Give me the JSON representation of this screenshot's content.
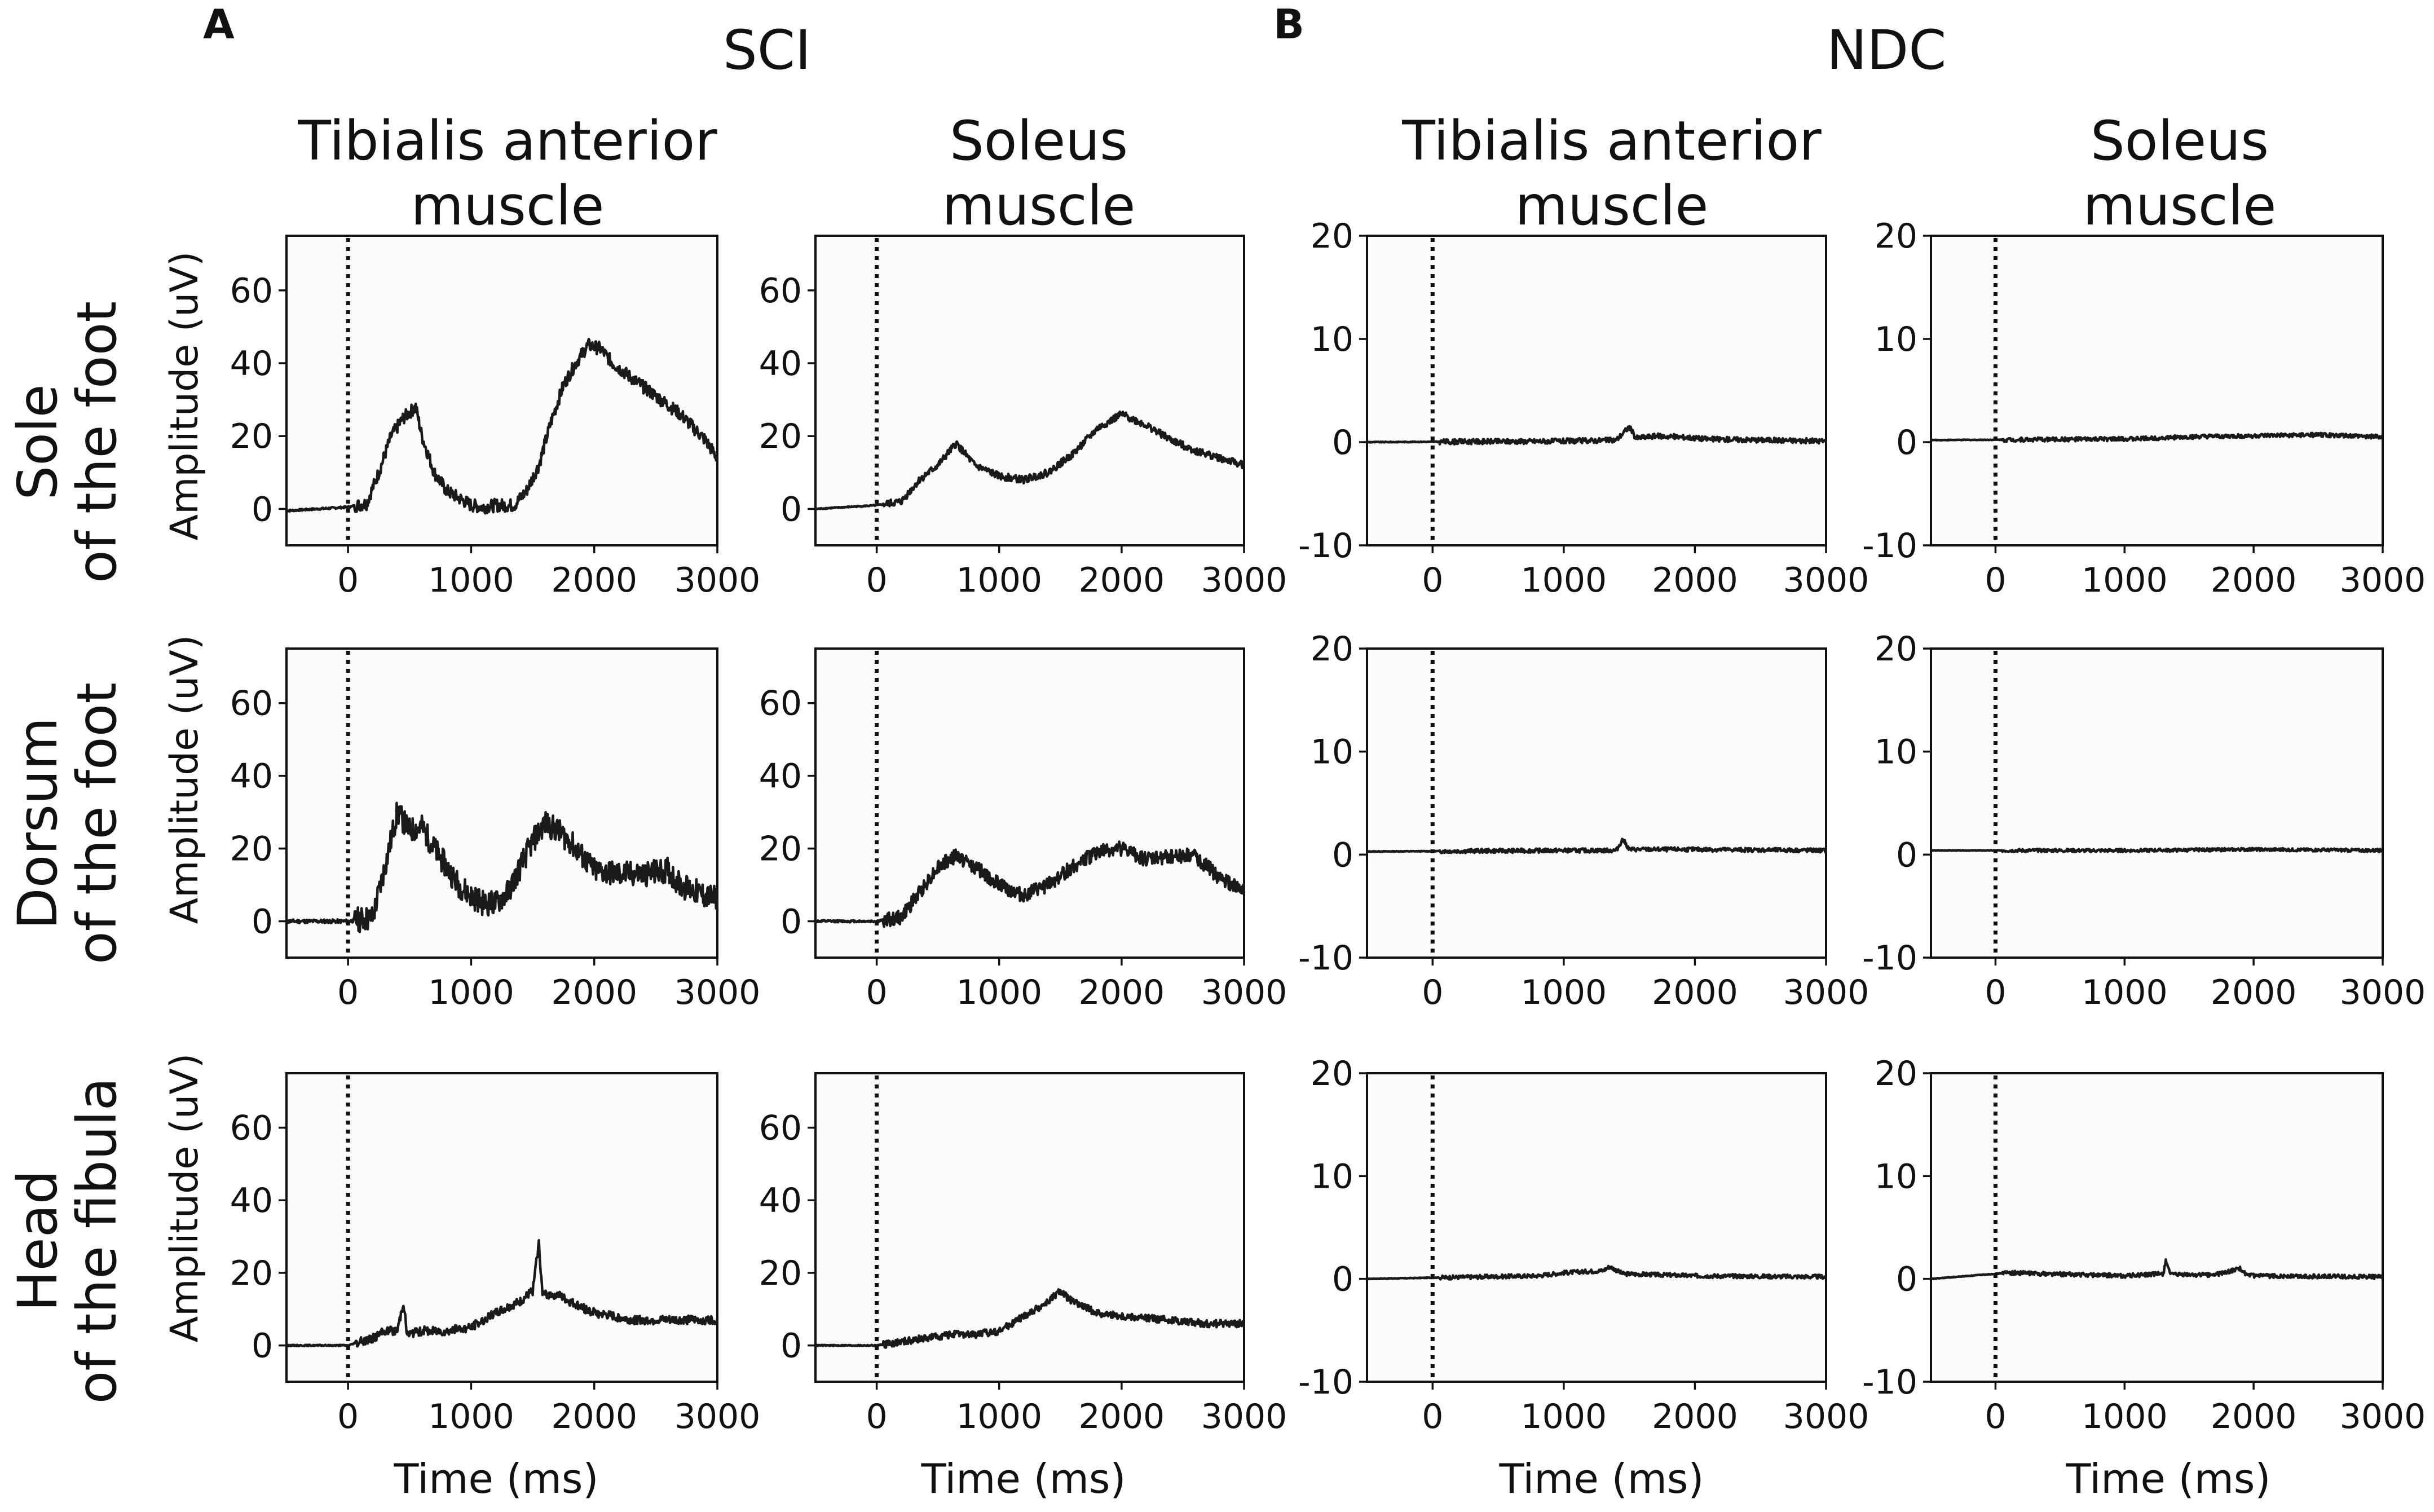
{
  "figure": {
    "panels": [
      {
        "letter": "A",
        "group": "SCI"
      },
      {
        "letter": "B",
        "group": "NDC"
      }
    ],
    "column_titles": [
      {
        "line1": "Tibialis anterior",
        "line2": "muscle"
      },
      {
        "line1": "Soleus",
        "line2": "muscle"
      },
      {
        "line1": "Tibialis anterior",
        "line2": "muscle"
      },
      {
        "line1": "Soleus",
        "line2": "muscle"
      }
    ],
    "row_titles": [
      {
        "line1": "Sole",
        "line2": "of the foot"
      },
      {
        "line1": "Dorsum",
        "line2": "of the foot"
      },
      {
        "line1": "Head",
        "line2": "of the fibula"
      }
    ],
    "ylabel": "Amplitude (uV)",
    "xlabel": "Time (ms)"
  },
  "chart_data": {
    "type": "line",
    "x_unit": "ms",
    "y_unit": "uV",
    "stimulus_onset_ms": 0,
    "charts": [
      {
        "group": "SCI",
        "muscle": "Tibialis anterior muscle",
        "site": "Sole of the foot",
        "xlim": [
          -500,
          3000
        ],
        "xticks": [
          0,
          1000,
          2000,
          3000
        ],
        "ylim": [
          -10,
          75
        ],
        "yticks": [
          0,
          20,
          40,
          60
        ],
        "trace": [
          [
            -500,
            -0.5
          ],
          [
            0,
            0.5
          ],
          [
            150,
            1.5
          ],
          [
            250,
            10
          ],
          [
            350,
            20
          ],
          [
            450,
            25
          ],
          [
            550,
            28
          ],
          [
            600,
            20
          ],
          [
            700,
            10
          ],
          [
            800,
            5
          ],
          [
            900,
            3
          ],
          [
            1000,
            1
          ],
          [
            1100,
            0.5
          ],
          [
            1200,
            1
          ],
          [
            1350,
            1
          ],
          [
            1450,
            5
          ],
          [
            1550,
            12
          ],
          [
            1650,
            24
          ],
          [
            1750,
            34
          ],
          [
            1850,
            40
          ],
          [
            1950,
            45
          ],
          [
            2050,
            44
          ],
          [
            2150,
            40
          ],
          [
            2300,
            36
          ],
          [
            2500,
            31
          ],
          [
            2700,
            26
          ],
          [
            2900,
            19
          ],
          [
            3000,
            14
          ]
        ],
        "noise": 1.8
      },
      {
        "group": "SCI",
        "muscle": "Soleus muscle",
        "site": "Sole of the foot",
        "xlim": [
          -500,
          3000
        ],
        "xticks": [
          0,
          1000,
          2000,
          3000
        ],
        "ylim": [
          -10,
          75
        ],
        "yticks": [
          0,
          20,
          40,
          60
        ],
        "trace": [
          [
            -500,
            0
          ],
          [
            0,
            1
          ],
          [
            200,
            2
          ],
          [
            350,
            8
          ],
          [
            500,
            12
          ],
          [
            650,
            18
          ],
          [
            800,
            12
          ],
          [
            1000,
            9
          ],
          [
            1200,
            8
          ],
          [
            1400,
            10
          ],
          [
            1600,
            15
          ],
          [
            1800,
            22
          ],
          [
            2000,
            26
          ],
          [
            2200,
            23
          ],
          [
            2400,
            19
          ],
          [
            2600,
            16
          ],
          [
            2800,
            14
          ],
          [
            3000,
            12
          ]
        ],
        "noise": 1.0
      },
      {
        "group": "NDC",
        "muscle": "Tibialis anterior muscle",
        "site": "Sole of the foot",
        "xlim": [
          -500,
          3000
        ],
        "xticks": [
          0,
          1000,
          2000,
          3000
        ],
        "ylim": [
          -10,
          20
        ],
        "yticks": [
          -10,
          0,
          10,
          20
        ],
        "trace": [
          [
            -500,
            0
          ],
          [
            1000,
            0.1
          ],
          [
            1400,
            0.2
          ],
          [
            1500,
            1.5
          ],
          [
            1550,
            0.4
          ],
          [
            1700,
            0.6
          ],
          [
            1900,
            0.5
          ],
          [
            2100,
            0.3
          ],
          [
            3000,
            0.1
          ]
        ],
        "noise": 0.25
      },
      {
        "group": "NDC",
        "muscle": "Soleus muscle",
        "site": "Sole of the foot",
        "xlim": [
          -500,
          3000
        ],
        "xticks": [
          0,
          1000,
          2000,
          3000
        ],
        "ylim": [
          -10,
          20
        ],
        "yticks": [
          -10,
          0,
          10,
          20
        ],
        "trace": [
          [
            -500,
            0.2
          ],
          [
            1000,
            0.3
          ],
          [
            1500,
            0.5
          ],
          [
            2000,
            0.6
          ],
          [
            2500,
            0.7
          ],
          [
            3000,
            0.5
          ]
        ],
        "noise": 0.2
      },
      {
        "group": "SCI",
        "muscle": "Tibialis anterior muscle",
        "site": "Dorsum of the foot",
        "xlim": [
          -500,
          3000
        ],
        "xticks": [
          0,
          1000,
          2000,
          3000
        ],
        "ylim": [
          -10,
          75
        ],
        "yticks": [
          0,
          20,
          40,
          60
        ],
        "trace": [
          [
            -500,
            0
          ],
          [
            0,
            0
          ],
          [
            200,
            1
          ],
          [
            300,
            15
          ],
          [
            400,
            30
          ],
          [
            500,
            25
          ],
          [
            600,
            26
          ],
          [
            700,
            20
          ],
          [
            800,
            15
          ],
          [
            900,
            10
          ],
          [
            1000,
            7
          ],
          [
            1100,
            5
          ],
          [
            1200,
            5
          ],
          [
            1300,
            8
          ],
          [
            1400,
            15
          ],
          [
            1500,
            22
          ],
          [
            1600,
            27
          ],
          [
            1700,
            25
          ],
          [
            1800,
            22
          ],
          [
            1900,
            18
          ],
          [
            2000,
            14
          ],
          [
            2200,
            13
          ],
          [
            2400,
            13
          ],
          [
            2600,
            14
          ],
          [
            2700,
            10
          ],
          [
            2900,
            7
          ],
          [
            3000,
            6
          ]
        ],
        "noise": 3.5
      },
      {
        "group": "SCI",
        "muscle": "Soleus muscle",
        "site": "Dorsum of the foot",
        "xlim": [
          -500,
          3000
        ],
        "xticks": [
          0,
          1000,
          2000,
          3000
        ],
        "ylim": [
          -10,
          75
        ],
        "yticks": [
          0,
          20,
          40,
          60
        ],
        "trace": [
          [
            -500,
            0
          ],
          [
            0,
            0
          ],
          [
            200,
            1
          ],
          [
            350,
            8
          ],
          [
            500,
            15
          ],
          [
            650,
            18
          ],
          [
            800,
            15
          ],
          [
            1000,
            10
          ],
          [
            1200,
            7
          ],
          [
            1400,
            10
          ],
          [
            1600,
            15
          ],
          [
            1800,
            19
          ],
          [
            2000,
            20
          ],
          [
            2200,
            17
          ],
          [
            2400,
            18
          ],
          [
            2600,
            18
          ],
          [
            2800,
            12
          ],
          [
            3000,
            8
          ]
        ],
        "noise": 2.0
      },
      {
        "group": "NDC",
        "muscle": "Tibialis anterior muscle",
        "site": "Dorsum of the foot",
        "xlim": [
          -500,
          3000
        ],
        "xticks": [
          0,
          1000,
          2000,
          3000
        ],
        "ylim": [
          -10,
          20
        ],
        "yticks": [
          -10,
          0,
          10,
          20
        ],
        "trace": [
          [
            -500,
            0.3
          ],
          [
            1000,
            0.4
          ],
          [
            1400,
            0.4
          ],
          [
            1450,
            1.5
          ],
          [
            1500,
            0.5
          ],
          [
            2000,
            0.5
          ],
          [
            3000,
            0.4
          ]
        ],
        "noise": 0.2
      },
      {
        "group": "NDC",
        "muscle": "Soleus muscle",
        "site": "Dorsum of the foot",
        "xlim": [
          -500,
          3000
        ],
        "xticks": [
          0,
          1000,
          2000,
          3000
        ],
        "ylim": [
          -10,
          20
        ],
        "yticks": [
          -10,
          0,
          10,
          20
        ],
        "trace": [
          [
            -500,
            0.4
          ],
          [
            1000,
            0.4
          ],
          [
            2000,
            0.5
          ],
          [
            3000,
            0.4
          ]
        ],
        "noise": 0.15
      },
      {
        "group": "SCI",
        "muscle": "Tibialis anterior muscle",
        "site": "Head of the fibula",
        "xlim": [
          -500,
          3000
        ],
        "xticks": [
          0,
          1000,
          2000,
          3000
        ],
        "ylim": [
          -10,
          75
        ],
        "yticks": [
          0,
          20,
          40,
          60
        ],
        "trace": [
          [
            -500,
            0
          ],
          [
            0,
            0
          ],
          [
            200,
            2
          ],
          [
            300,
            4
          ],
          [
            400,
            4
          ],
          [
            450,
            12
          ],
          [
            480,
            3
          ],
          [
            600,
            4
          ],
          [
            800,
            4
          ],
          [
            1000,
            5
          ],
          [
            1200,
            9
          ],
          [
            1400,
            12
          ],
          [
            1500,
            15
          ],
          [
            1550,
            28
          ],
          [
            1580,
            14
          ],
          [
            1700,
            14
          ],
          [
            1800,
            12
          ],
          [
            2000,
            9
          ],
          [
            2300,
            7
          ],
          [
            2700,
            7
          ],
          [
            3000,
            7
          ]
        ],
        "noise": 1.2
      },
      {
        "group": "SCI",
        "muscle": "Soleus muscle",
        "site": "Head of the fibula",
        "xlim": [
          -500,
          3000
        ],
        "xticks": [
          0,
          1000,
          2000,
          3000
        ],
        "ylim": [
          -10,
          75
        ],
        "yticks": [
          0,
          20,
          40,
          60
        ],
        "trace": [
          [
            -500,
            0
          ],
          [
            0,
            0
          ],
          [
            200,
            1
          ],
          [
            400,
            2
          ],
          [
            600,
            3
          ],
          [
            800,
            3
          ],
          [
            1000,
            4
          ],
          [
            1200,
            8
          ],
          [
            1400,
            12
          ],
          [
            1500,
            15
          ],
          [
            1600,
            12
          ],
          [
            1800,
            9
          ],
          [
            2000,
            8
          ],
          [
            2400,
            7
          ],
          [
            2700,
            6
          ],
          [
            3000,
            6
          ]
        ],
        "noise": 1.0
      },
      {
        "group": "NDC",
        "muscle": "Tibialis anterior muscle",
        "site": "Head of the fibula",
        "xlim": [
          -500,
          3000
        ],
        "xticks": [
          0,
          1000,
          2000,
          3000
        ],
        "ylim": [
          -10,
          20
        ],
        "yticks": [
          -10,
          0,
          10,
          20
        ],
        "trace": [
          [
            -500,
            0
          ],
          [
            800,
            0.3
          ],
          [
            1000,
            0.6
          ],
          [
            1300,
            0.8
          ],
          [
            1350,
            1.2
          ],
          [
            1450,
            0.5
          ],
          [
            2000,
            0.3
          ],
          [
            3000,
            0.2
          ]
        ],
        "noise": 0.2
      },
      {
        "group": "NDC",
        "muscle": "Soleus muscle",
        "site": "Head of the fibula",
        "xlim": [
          -500,
          3000
        ],
        "xticks": [
          0,
          1000,
          2000,
          3000
        ],
        "ylim": [
          -10,
          20
        ],
        "yticks": [
          -10,
          0,
          10,
          20
        ],
        "trace": [
          [
            -500,
            0
          ],
          [
            100,
            0.6
          ],
          [
            1000,
            0.3
          ],
          [
            1300,
            0.5
          ],
          [
            1320,
            1.8
          ],
          [
            1360,
            0.4
          ],
          [
            1700,
            0.4
          ],
          [
            1900,
            1.0
          ],
          [
            1950,
            0.3
          ],
          [
            3000,
            0.2
          ]
        ],
        "noise": 0.2
      }
    ]
  }
}
